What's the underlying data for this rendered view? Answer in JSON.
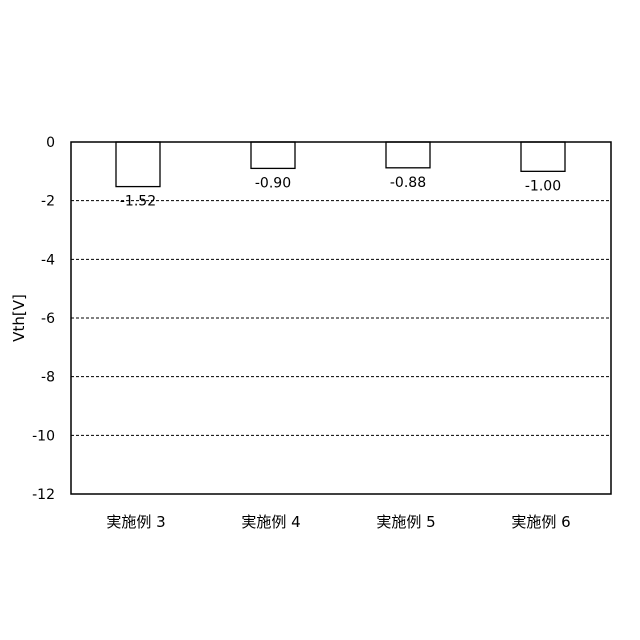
{
  "chart_data": {
    "type": "bar",
    "categories": [
      "実施例 3",
      "実施例 4",
      "実施例 5",
      "実施例 6"
    ],
    "values": [
      -1.52,
      -0.9,
      -0.88,
      -1.0
    ],
    "data_labels": [
      "-1.52",
      "-0.90",
      "-0.88",
      "-1.00"
    ],
    "title": "",
    "xlabel": "",
    "ylabel": "Vth[V]",
    "ylim": [
      -12,
      0
    ],
    "yticks": [
      0,
      -2,
      -4,
      -6,
      -8,
      -10,
      -12
    ],
    "ytick_labels": [
      "0",
      "-2",
      "-4",
      "-6",
      "-8",
      "-10",
      "-12"
    ],
    "grid": "horizontal dashed",
    "legend": "none",
    "bar_fill": "#ffffff",
    "bar_stroke": "#000000"
  }
}
